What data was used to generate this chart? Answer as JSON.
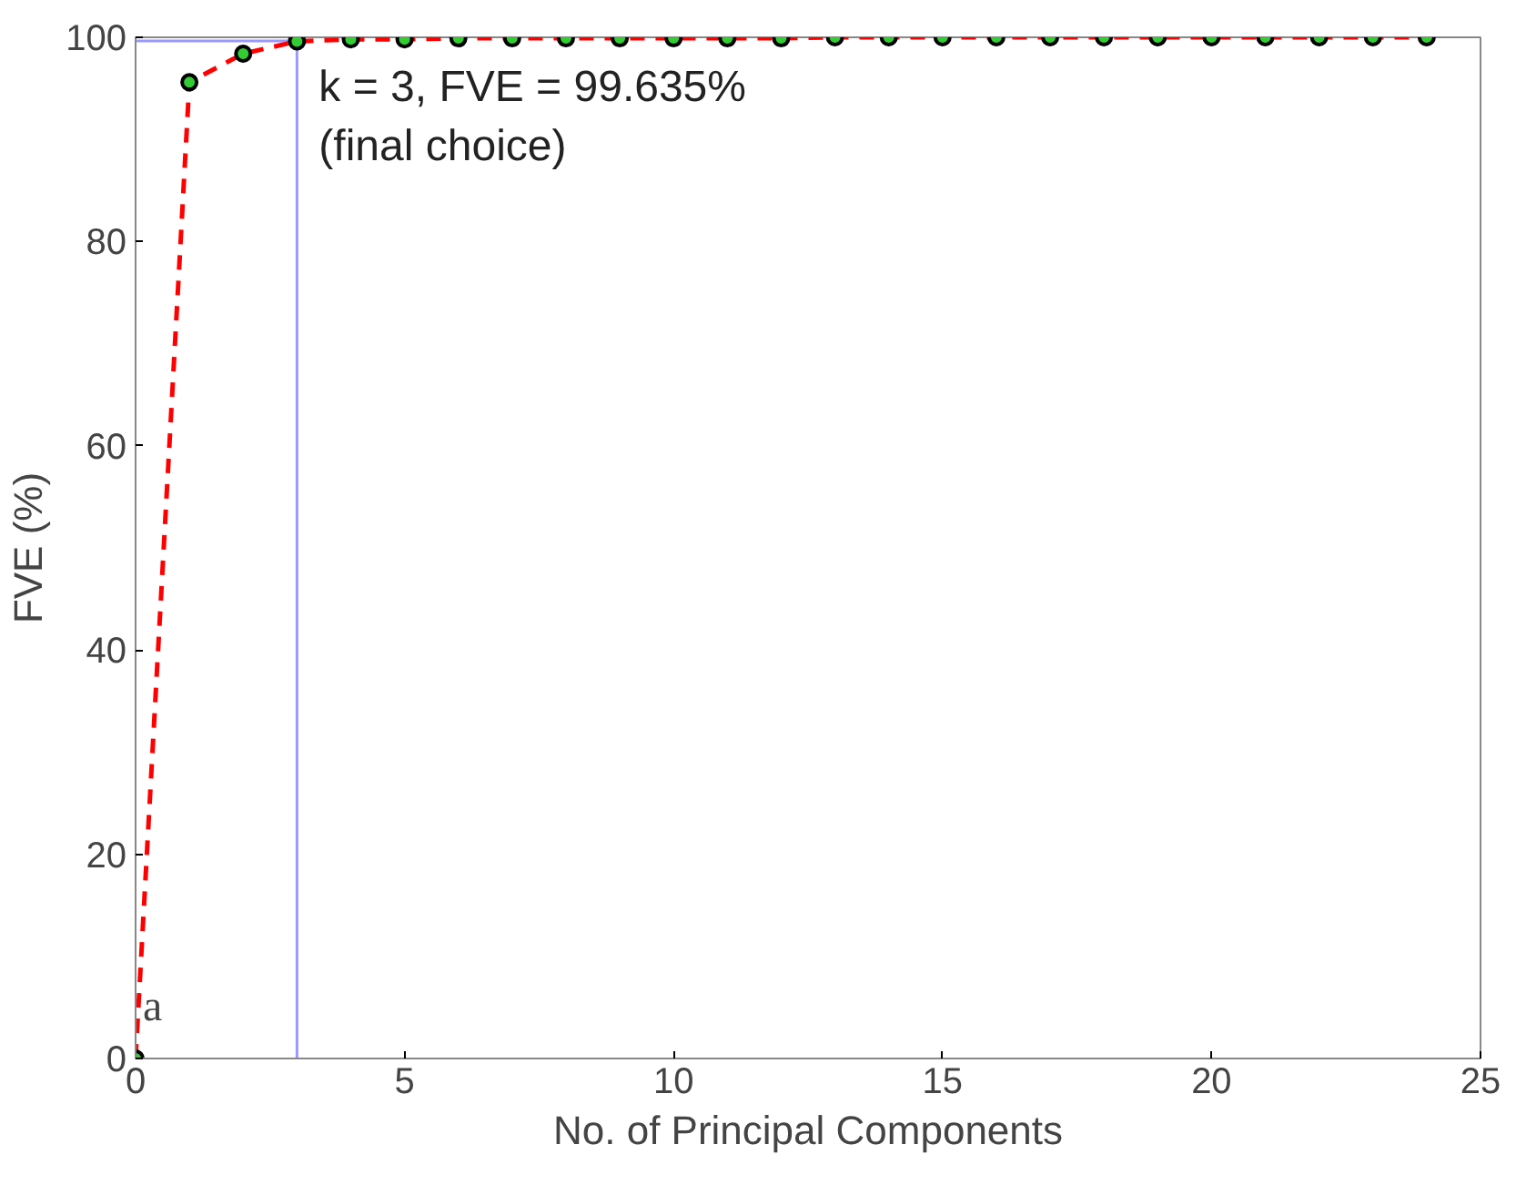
{
  "chart_data": {
    "type": "line",
    "xlabel": "No. of Principal Components",
    "ylabel": "FVE (%)",
    "x": [
      0,
      1,
      2,
      3,
      4,
      5,
      6,
      7,
      8,
      9,
      10,
      11,
      12,
      13,
      14,
      15,
      16,
      17,
      18,
      19,
      20,
      21,
      22,
      23,
      24
    ],
    "series": [
      {
        "color": "#ff0000",
        "values": [
          0,
          95.6,
          98.4,
          99.6,
          99.8,
          99.8,
          99.9,
          99.9,
          99.9,
          99.9,
          99.9,
          99.9,
          99.9,
          100,
          100,
          100,
          100,
          100,
          100,
          100,
          100,
          100,
          100,
          100,
          100
        ]
      }
    ],
    "marker": "circle",
    "line_style": "dashed",
    "grid": false,
    "xlim": [
      0,
      25
    ],
    "ylim": [
      0,
      100
    ],
    "xticks": [
      0,
      5,
      10,
      15,
      20,
      25
    ],
    "yticks": [
      0,
      20,
      40,
      60,
      80,
      100
    ],
    "ref_lines": [
      {
        "axis": "x",
        "value": 3,
        "label": null,
        "color": "#9999ff"
      },
      {
        "axis": "y",
        "value": 99.635,
        "label": null,
        "color": "#9999ff"
      }
    ],
    "annotations": [
      "a",
      {
        "text": "k = 3, FVE = 99.635%\n(final choice)",
        "x": 3,
        "y": 99.635
      }
    ]
  }
}
